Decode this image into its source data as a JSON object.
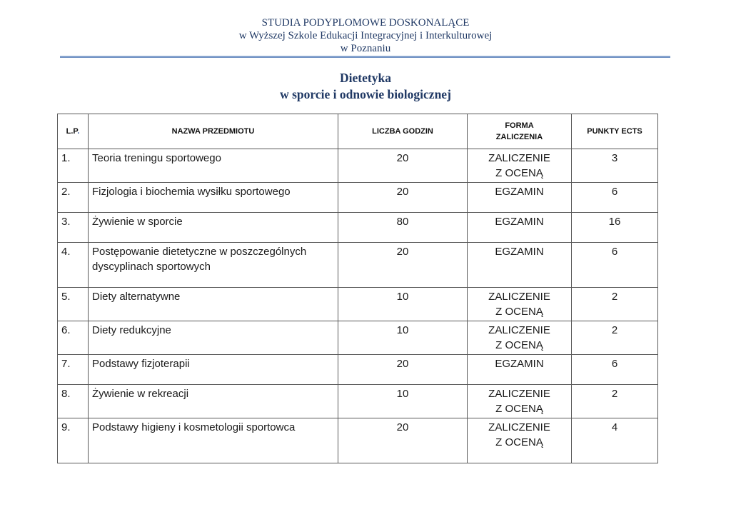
{
  "institution": {
    "line1": "STUDIA PODYPLOMOWE DOSKONALĄCE",
    "line2": "w Wyższej Szkole Edukacji Integracyjnej i Interkulturowej",
    "line3": "w Poznaniu"
  },
  "title": {
    "line1": "Dietetyka",
    "line2": "w sporcie i odnowie biologicznej"
  },
  "colors": {
    "heading_navy": "#1F3864",
    "rule_blue": "#7293C4",
    "table_border": "#595959",
    "lp_dot_blue": "#2E5395"
  },
  "table": {
    "headers": {
      "lp_text": "L.P",
      "lp_dot": ".",
      "nazwa": "NAZWA PRZEDMIOTU",
      "godziny": "LICZBA GODZIN",
      "forma": "FORMA\nZALICZENIA",
      "punkty": "PUNKTY ECTS"
    },
    "rows": [
      {
        "lp": "1.",
        "nazwa": "Teoria treningu sportowego",
        "godziny": "20",
        "forma": "ZALICZENIE\nZ OCENĄ",
        "punkty": "3"
      },
      {
        "lp": "2.",
        "nazwa": "Fizjologia i biochemia wysiłku sportowego",
        "godziny": "20",
        "forma": "EGZAMIN",
        "punkty": "6"
      },
      {
        "lp": "3.",
        "nazwa": "Żywienie w sporcie",
        "godziny": "80",
        "forma": "EGZAMIN",
        "punkty": "16"
      },
      {
        "lp": "4.",
        "nazwa": "Postępowanie dietetyczne w poszczególnych dyscyplinach sportowych",
        "godziny": "20",
        "forma": "EGZAMIN",
        "punkty": "6"
      },
      {
        "lp": "5.",
        "nazwa": "Diety alternatywne",
        "godziny": "10",
        "forma": "ZALICZENIE\nZ OCENĄ",
        "punkty": "2"
      },
      {
        "lp": "6.",
        "nazwa": "Diety redukcyjne",
        "godziny": "10",
        "forma": "ZALICZENIE\nZ OCENĄ",
        "punkty": "2"
      },
      {
        "lp": "7.",
        "nazwa": "Podstawy fizjoterapii",
        "godziny": "20",
        "forma": "EGZAMIN",
        "punkty": "6"
      },
      {
        "lp": "8.",
        "nazwa": "Żywienie w rekreacji",
        "godziny": "10",
        "forma": "ZALICZENIE\nZ OCENĄ",
        "punkty": "2"
      },
      {
        "lp": "9.",
        "nazwa": "Podstawy higieny i kosmetologii sportowca",
        "godziny": "20",
        "forma": "ZALICZENIE\nZ OCENĄ",
        "punkty": "4"
      }
    ]
  }
}
